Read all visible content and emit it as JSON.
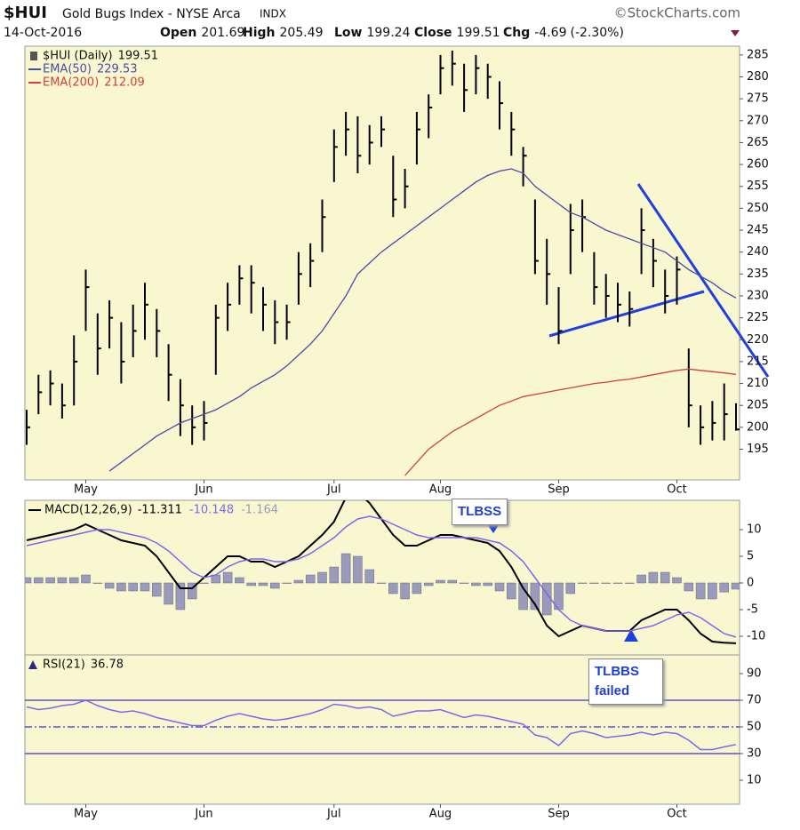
{
  "header": {
    "symbol": "$HUI",
    "name": "Gold Bugs Index - NYSE Arca",
    "exchange": "INDX",
    "source": "©StockCharts.com",
    "date": "14-Oct-2016",
    "quote": [
      {
        "label": "Open",
        "value": 201.69
      },
      {
        "label": "High",
        "value": 205.49
      },
      {
        "label": "Low",
        "value": 199.24
      },
      {
        "label": "Close",
        "value": 199.51
      },
      {
        "label": "Chg",
        "value": -4.69,
        "pct": "(-2.30%)"
      }
    ],
    "annotations": [
      "TLBSS",
      "TLBBS failed"
    ]
  },
  "chart_data": [
    {
      "type": "hlc",
      "ylim": [
        188,
        287
      ],
      "yticks": [
        195,
        200,
        205,
        210,
        215,
        220,
        225,
        230,
        235,
        240,
        245,
        250,
        255,
        260,
        265,
        270,
        275,
        280,
        285
      ],
      "categories": [
        null,
        null,
        null,
        null,
        null,
        "May",
        null,
        null,
        null,
        null,
        null,
        null,
        null,
        null,
        null,
        "Jun",
        null,
        null,
        null,
        null,
        null,
        null,
        null,
        null,
        null,
        null,
        "Jul",
        null,
        null,
        null,
        null,
        null,
        null,
        null,
        null,
        "Aug",
        null,
        null,
        null,
        null,
        null,
        null,
        null,
        null,
        null,
        "Sep",
        null,
        null,
        null,
        null,
        null,
        null,
        null,
        null,
        null,
        "Oct",
        null,
        null,
        null,
        null,
        null
      ],
      "series": [
        {
          "name": "$HUI (Daily)",
          "color": "#000000",
          "high": [
            204,
            212,
            213,
            210,
            221,
            236,
            226,
            229,
            224,
            228,
            233,
            227,
            219,
            211,
            205,
            206,
            228,
            233,
            237,
            237,
            232,
            229,
            228,
            240,
            242,
            252,
            268,
            272,
            271,
            269,
            271,
            262,
            259,
            272,
            276,
            285,
            286,
            283,
            285,
            283,
            279,
            272,
            264,
            252,
            243,
            232,
            251,
            252,
            240,
            235,
            233,
            231,
            250,
            243,
            236,
            239,
            218,
            205,
            206,
            210,
            205.49
          ],
          "low": [
            196,
            203,
            205,
            202,
            205,
            222,
            212,
            218,
            210,
            216,
            220,
            216,
            206,
            198,
            196,
            197,
            212,
            222,
            228,
            226,
            222,
            219,
            220,
            228,
            232,
            240,
            256,
            262,
            258,
            260,
            264,
            248,
            250,
            260,
            266,
            276,
            278,
            272,
            276,
            275,
            268,
            262,
            255,
            235,
            228,
            219,
            235,
            240,
            228,
            225,
            224,
            223,
            235,
            232,
            226,
            228,
            200,
            196,
            197,
            197,
            199.24
          ],
          "close": [
            200,
            208,
            210,
            205,
            215,
            232,
            218,
            225,
            215,
            222,
            228,
            222,
            212,
            205,
            200,
            201,
            225,
            228,
            234,
            233,
            228,
            224,
            224,
            235,
            238,
            248,
            264,
            268,
            262,
            265,
            268,
            252,
            255,
            268,
            273,
            282,
            283,
            277,
            282,
            280,
            274,
            268,
            262,
            238,
            235,
            222,
            245,
            248,
            232,
            230,
            228,
            227,
            245,
            238,
            230,
            236,
            205,
            200,
            201,
            203,
            199.51
          ]
        },
        {
          "name": "EMA(50)",
          "color": "#4a4aa8",
          "values": [
            null,
            null,
            null,
            null,
            null,
            null,
            null,
            190,
            192,
            194,
            196,
            198,
            199.5,
            201,
            202,
            203,
            204,
            205.5,
            207,
            209,
            210.5,
            212,
            214,
            216.5,
            219,
            222,
            226,
            230,
            235,
            237.5,
            240,
            242,
            244,
            246,
            248,
            250,
            252,
            254,
            256,
            257.5,
            258.5,
            259,
            258,
            255,
            253,
            251,
            249,
            248,
            246.5,
            245,
            244,
            243,
            242,
            241,
            240,
            238,
            236,
            234.5,
            233,
            231,
            229.53
          ]
        },
        {
          "name": "EMA(200)",
          "color": "#d04040",
          "values": [
            null,
            null,
            null,
            null,
            null,
            null,
            null,
            null,
            null,
            null,
            null,
            null,
            null,
            null,
            null,
            null,
            null,
            null,
            null,
            null,
            null,
            null,
            null,
            null,
            null,
            null,
            null,
            null,
            null,
            null,
            null,
            null,
            189,
            192,
            195,
            197,
            199,
            200.5,
            202,
            203.5,
            205,
            206,
            207,
            207.5,
            208,
            208.5,
            209,
            209.5,
            210,
            210.3,
            210.7,
            211,
            211.5,
            212,
            212.5,
            213,
            213.3,
            213,
            212.7,
            212.4,
            212.09
          ]
        }
      ]
    },
    {
      "type": "macd",
      "ylim": [
        -13.5,
        15.5
      ],
      "yticks": [
        -10,
        -5,
        0,
        5,
        10
      ],
      "series": [
        {
          "name": "MACD(12,26,9)",
          "style": "line",
          "color": "#000000",
          "values": [
            8,
            8.5,
            9,
            9.5,
            10,
            11,
            10,
            9,
            8,
            7.5,
            7,
            5,
            2,
            -1,
            -1,
            1,
            3,
            5,
            5,
            4,
            4,
            3,
            4,
            5,
            7,
            9,
            11.5,
            16,
            17,
            15,
            12,
            9,
            7,
            7,
            8,
            9,
            9,
            8.5,
            8,
            7.5,
            6,
            3,
            -1,
            -4,
            -8,
            -10,
            -9,
            -8,
            -8.5,
            -9,
            -9,
            -9,
            -7,
            -6,
            -5,
            -5,
            -7,
            -9.5,
            -11,
            -11.2,
            -11.311
          ]
        },
        {
          "style": "line",
          "color": "#7b68ee",
          "values": [
            7,
            7.5,
            8,
            8.5,
            9,
            9.5,
            10,
            10,
            9.5,
            9,
            8.5,
            7.5,
            6,
            4,
            2,
            1,
            1.5,
            3,
            4,
            4.5,
            4.5,
            4,
            4,
            4.5,
            5.5,
            7,
            8.5,
            10.5,
            12,
            12.5,
            12,
            11,
            10,
            9,
            8.5,
            8.5,
            8.5,
            8.5,
            8.5,
            8,
            7.5,
            6,
            4,
            1,
            -2,
            -5,
            -7,
            -8,
            -8.5,
            -9,
            -9,
            -9,
            -8.5,
            -8,
            -7,
            -6,
            -5.5,
            -6.5,
            -8,
            -9.5,
            -10.148
          ]
        },
        {
          "style": "bar",
          "color": "#9a9abb",
          "values": [
            1,
            1,
            1,
            1,
            1,
            1.5,
            0,
            -1,
            -1.5,
            -1.5,
            -1.5,
            -2.5,
            -4,
            -5,
            -3,
            0,
            1.5,
            2,
            1,
            -0.5,
            -0.5,
            -1,
            0,
            0.5,
            1.5,
            2,
            3,
            5.5,
            5,
            2.5,
            0,
            -2,
            -3,
            -2,
            -0.5,
            0.5,
            0.5,
            0,
            -0.5,
            -0.5,
            -1.5,
            -3,
            -5,
            -5,
            -6,
            -5,
            -2,
            0,
            0,
            0,
            0,
            0,
            1.5,
            2,
            2,
            1,
            -1.5,
            -3,
            -3,
            -1.7,
            -1.164
          ]
        }
      ]
    },
    {
      "type": "line",
      "ylim": [
        -8,
        104
      ],
      "yticks": [
        10,
        30,
        50,
        70,
        90
      ],
      "hlines": [
        70,
        50,
        30
      ],
      "hline_styles": [
        "solid",
        "dashdot",
        "solid"
      ],
      "hline_color": "#5a50c8",
      "categories": [
        null,
        null,
        null,
        null,
        null,
        "May",
        null,
        null,
        null,
        null,
        null,
        null,
        null,
        null,
        null,
        "Jun",
        null,
        null,
        null,
        null,
        null,
        null,
        null,
        null,
        null,
        null,
        "Jul",
        null,
        null,
        null,
        null,
        null,
        null,
        null,
        null,
        "Aug",
        null,
        null,
        null,
        null,
        null,
        null,
        null,
        null,
        null,
        "Sep",
        null,
        null,
        null,
        null,
        null,
        null,
        null,
        null,
        null,
        "Oct",
        null,
        null,
        null,
        null,
        null
      ],
      "series": [
        {
          "name": "RSI(21)",
          "color": "#7b68ee",
          "values": [
            65,
            63,
            64,
            66,
            67,
            70,
            66,
            63,
            61,
            62,
            60,
            57,
            55,
            53,
            51,
            51,
            55,
            58,
            60,
            58,
            56,
            55,
            56,
            58,
            60,
            63,
            67,
            66,
            64,
            65,
            63,
            58,
            60,
            62,
            62,
            63,
            60,
            57,
            59,
            58,
            56,
            54,
            52,
            44,
            42,
            36,
            45,
            47,
            45,
            42,
            43,
            44,
            46,
            44,
            46,
            45,
            40,
            33,
            33,
            35,
            36.78
          ]
        }
      ]
    }
  ]
}
